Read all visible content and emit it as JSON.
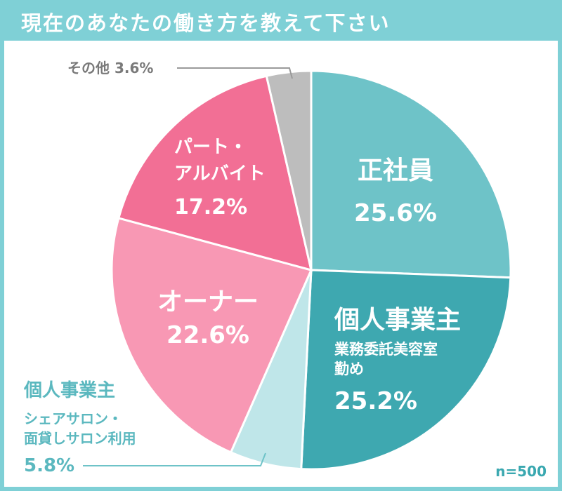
{
  "title": "現在のあなたの働き方を教えて下さい",
  "sample_size": "n=500",
  "chart_data": {
    "type": "pie",
    "title": "現在のあなたの働き方を教えて下さい",
    "slices": [
      {
        "name": "正社員",
        "value": 25.6,
        "value_label": "25.6%",
        "sub": "",
        "color": "#6ec3c8",
        "text_color": "#ffffff"
      },
      {
        "name": "個人事業主",
        "value": 25.2,
        "value_label": "25.2%",
        "sub": [
          "業務委託美容室",
          "勤め"
        ],
        "color": "#3ea8b0",
        "text_color": "#ffffff"
      },
      {
        "name": "個人事業主",
        "value": 5.8,
        "value_label": "5.8%",
        "sub": [
          "シェアサロン・",
          "面貸しサロン利用"
        ],
        "color": "#bfe6e9",
        "text_color": "#5bb8bf"
      },
      {
        "name": "オーナー",
        "value": 22.6,
        "value_label": "22.6%",
        "sub": "",
        "color": "#f898b4",
        "text_color": "#ffffff"
      },
      {
        "name": [
          "パート・",
          "アルバイト"
        ],
        "value": 17.2,
        "value_label": "17.2%",
        "sub": "",
        "color": "#f26f95",
        "text_color": "#ffffff"
      },
      {
        "name": "その他",
        "value": 3.6,
        "value_label": "3.6%",
        "sub": "",
        "color": "#bdbdbd",
        "text_color": "#7a7a7a"
      }
    ],
    "start_angle_deg": 0,
    "direction": "clockwise"
  }
}
